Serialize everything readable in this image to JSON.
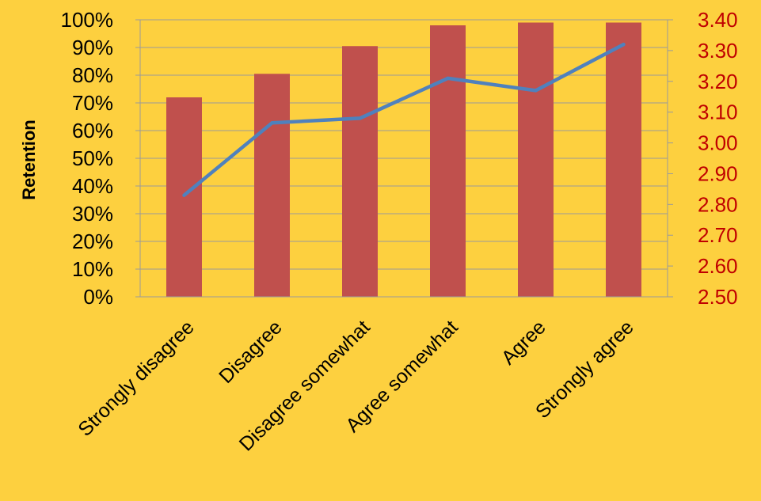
{
  "chart_data": {
    "type": "bar+line",
    "categories": [
      "Strongly disagree",
      "Disagree",
      "Disagree somewhat",
      "Agree somewhat",
      "Agree",
      "Strongly agree"
    ],
    "series": [
      {
        "type": "bar",
        "axis": "left",
        "values": [
          0.72,
          0.805,
          0.905,
          0.98,
          0.99,
          0.99
        ]
      },
      {
        "type": "line",
        "axis": "right",
        "values": [
          2.83,
          3.065,
          3.08,
          3.21,
          3.17,
          3.32
        ]
      }
    ],
    "ylabel": "Retention",
    "y_left": {
      "min": 0,
      "max": 1,
      "step": 0.1,
      "ticks": [
        "0%",
        "10%",
        "20%",
        "30%",
        "40%",
        "50%",
        "60%",
        "70%",
        "80%",
        "90%",
        "100%"
      ]
    },
    "y_right": {
      "min": 2.5,
      "max": 3.4,
      "step": 0.1,
      "ticks": [
        "2.50",
        "2.60",
        "2.70",
        "2.80",
        "2.90",
        "3.00",
        "3.10",
        "3.20",
        "3.30",
        "3.40"
      ]
    },
    "grid": true,
    "legend": "none",
    "colors": {
      "background": "#FDD03F",
      "bar": "#C0504D",
      "line": "#4F81BD",
      "right_axis": "#C00000",
      "grid": "#9A9A9A"
    }
  }
}
